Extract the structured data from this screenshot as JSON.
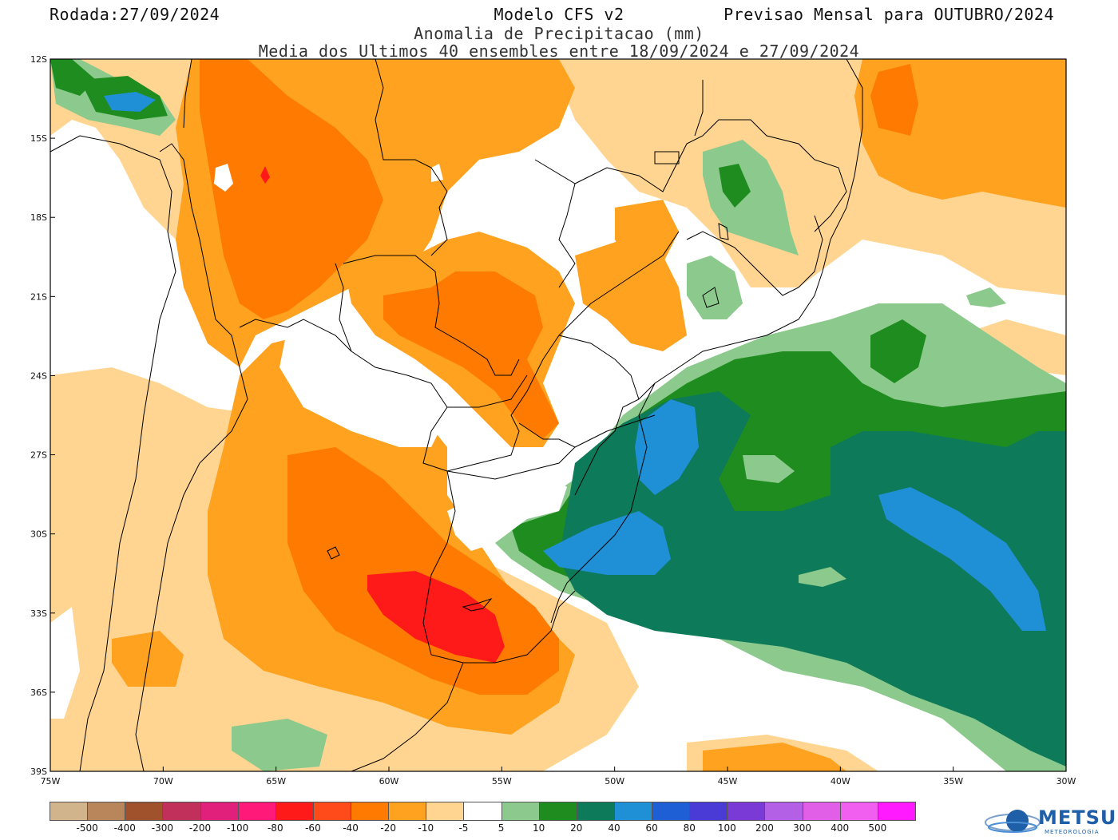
{
  "header": {
    "run_date": "Rodada:27/09/2024",
    "model": "Modelo CFS v2",
    "forecast": "Previsao Mensal para OUTUBRO/2024",
    "subtitle1": "Anomalia de Precipitacao (mm)",
    "subtitle2": "Media dos Ultimos 40 ensembles entre 18/09/2024 e 27/09/2024"
  },
  "map": {
    "lat_labels": [
      "12S",
      "15S",
      "18S",
      "21S",
      "24S",
      "27S",
      "30S",
      "33S",
      "36S",
      "39S"
    ],
    "lon_labels": [
      "75W",
      "70W",
      "65W",
      "60W",
      "55W",
      "50W",
      "45W",
      "40W",
      "35W",
      "30W"
    ],
    "lon_range": [
      -75,
      -30
    ],
    "lat_range": [
      -39,
      -12
    ]
  },
  "legend": {
    "labels": [
      "-500",
      "-400",
      "-300",
      "-200",
      "-100",
      "-80",
      "-60",
      "-40",
      "-20",
      "-10",
      "-5",
      "5",
      "10",
      "20",
      "40",
      "60",
      "80",
      "100",
      "200",
      "300",
      "400",
      "500"
    ],
    "colors": [
      "#d2b48c",
      "#b8865a",
      "#a0522d",
      "#c0305a",
      "#e0207a",
      "#ff1a7a",
      "#ff1a1a",
      "#ff4a1a",
      "#ff7a00",
      "#ffa21f",
      "#ffd591",
      "#ffffff",
      "#8cc98c",
      "#1f8c1f",
      "#0d7a5a",
      "#1f8fd6",
      "#1f5fd6",
      "#4a3ad6",
      "#7a3ad6",
      "#b35fe6",
      "#e05fe6",
      "#f05ff0",
      "#ff1aff"
    ]
  },
  "logo": {
    "name": "METSUL",
    "tagline": "METEOROLOGIA"
  }
}
